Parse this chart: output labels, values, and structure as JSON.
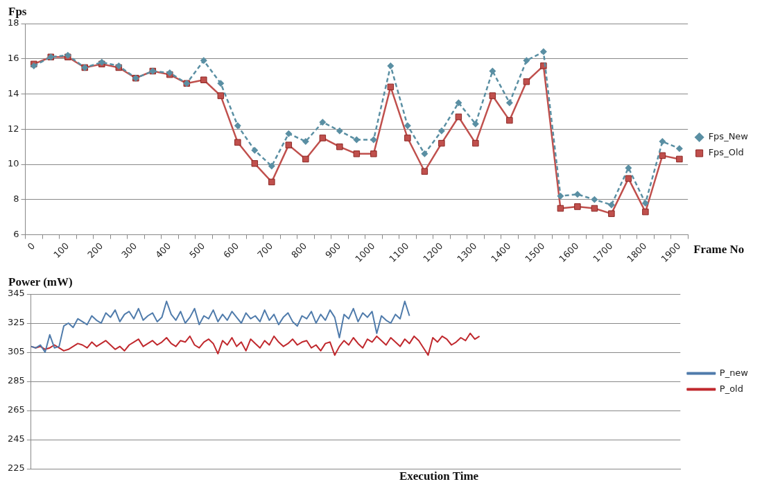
{
  "chart_data": [
    {
      "type": "line",
      "ylabel": "Fps",
      "xlabel": "Frame No",
      "categories": [
        "0",
        null,
        "100",
        null,
        "200",
        null,
        "300",
        null,
        "400",
        null,
        "500",
        null,
        "600",
        null,
        "700",
        null,
        "800",
        null,
        "900",
        null,
        "1000",
        null,
        "1100",
        null,
        "1200",
        null,
        "1300",
        null,
        "1400",
        null,
        "1500",
        null,
        "1600",
        null,
        "1700",
        null,
        "1800",
        null,
        "1900"
      ],
      "series": [
        {
          "name": "Fps_Old",
          "color": "#c0504d",
          "marker": "square",
          "line_style": "solid",
          "values": [
            15.7,
            16.1,
            16.1,
            15.5,
            15.7,
            15.5,
            14.9,
            15.3,
            15.1,
            14.6,
            14.8,
            13.9,
            11.25,
            10.05,
            9.0,
            11.1,
            10.3,
            11.5,
            11.0,
            10.6,
            10.6,
            14.4,
            11.5,
            9.6,
            11.2,
            12.7,
            11.2,
            13.9,
            12.5,
            14.7,
            15.6,
            7.5,
            7.6,
            7.5,
            7.2,
            9.2,
            7.3,
            10.5,
            10.3
          ]
        },
        {
          "name": "Fps_New",
          "color": "#5a8fa3",
          "marker": "diamond",
          "line_style": "dashed",
          "values": [
            15.6,
            16.1,
            16.2,
            15.5,
            15.8,
            15.6,
            14.9,
            15.3,
            15.2,
            14.6,
            15.9,
            14.6,
            12.2,
            10.8,
            9.9,
            11.75,
            11.3,
            12.4,
            11.9,
            11.4,
            11.4,
            15.6,
            12.2,
            10.6,
            11.9,
            13.5,
            12.3,
            15.3,
            13.5,
            15.9,
            16.4,
            8.2,
            8.3,
            8.0,
            7.7,
            9.8,
            7.8,
            11.3,
            10.9
          ]
        }
      ],
      "ylim": [
        6,
        18
      ],
      "yticks": [
        6,
        8,
        10,
        12,
        14,
        16,
        18
      ],
      "grid": "y",
      "legend": "right"
    },
    {
      "type": "line",
      "ylabel": "Power (mW)",
      "xlabel": "Execution Time",
      "marker": "none",
      "tick_labels": "y",
      "categories": [
        null,
        null,
        null,
        null,
        null,
        null,
        null,
        null,
        null,
        null,
        null,
        null,
        null,
        null,
        null,
        null,
        null,
        null,
        null,
        null,
        null,
        null,
        null,
        null,
        null,
        null,
        null,
        null,
        null,
        null,
        null,
        null,
        null,
        null,
        null,
        null,
        null,
        null,
        null,
        null,
        null,
        null,
        null,
        null,
        null,
        null,
        null,
        null,
        null,
        null,
        null,
        null,
        null,
        null,
        null,
        null,
        null,
        null,
        null,
        null,
        null,
        null,
        null,
        null,
        null,
        null,
        null,
        null,
        null,
        null,
        null,
        null,
        null,
        null,
        null,
        null,
        null,
        null,
        null,
        null,
        null,
        null,
        null,
        null,
        null,
        null,
        null,
        null,
        null,
        null,
        null,
        null,
        null,
        null,
        null,
        null,
        null,
        null,
        null,
        null,
        null,
        null,
        null,
        null,
        null,
        null,
        null,
        null,
        null,
        null,
        null,
        null,
        null,
        null,
        null,
        null,
        null,
        null,
        null,
        null,
        null,
        null,
        null,
        null,
        null,
        null,
        null,
        null,
        null,
        null,
        null,
        null,
        null,
        null,
        null,
        null,
        null,
        null,
        null,
        null
      ],
      "series": [
        {
          "name": "P_old",
          "color": "#c0282d",
          "values": [
            309,
            308,
            309,
            307,
            308,
            310,
            308,
            306,
            307,
            309,
            311,
            310,
            308,
            312,
            309,
            311,
            313,
            310,
            307,
            309,
            306,
            310,
            312,
            314,
            309,
            311,
            313,
            310,
            312,
            315,
            311,
            309,
            313,
            312,
            316,
            310,
            308,
            312,
            314,
            311,
            304,
            313,
            310,
            315,
            309,
            312,
            306,
            314,
            311,
            308,
            313,
            310,
            316,
            312,
            309,
            311,
            314,
            310,
            312,
            313,
            308,
            310,
            306,
            311,
            312,
            303,
            309,
            313,
            310,
            315,
            311,
            308,
            314,
            312,
            316,
            313,
            310,
            315,
            312,
            309,
            314,
            311,
            316,
            313,
            308,
            303,
            315,
            312,
            316,
            314,
            310,
            312,
            315,
            313,
            318,
            314,
            316,
            null,
            null,
            null,
            null,
            null,
            null,
            null,
            null,
            null,
            null,
            null,
            null,
            null,
            null,
            null,
            null,
            null,
            null,
            null,
            null,
            null,
            null,
            null,
            null,
            null,
            null,
            null,
            null,
            null,
            null,
            null,
            null,
            null,
            null,
            null,
            null,
            null,
            null,
            null,
            null,
            null,
            null,
            null
          ]
        },
        {
          "name": "P_new",
          "color": "#4f7bab",
          "values": [
            309,
            308,
            310,
            305,
            317,
            308,
            309,
            323,
            325,
            322,
            328,
            326,
            324,
            330,
            327,
            325,
            332,
            329,
            334,
            326,
            331,
            333,
            328,
            335,
            327,
            330,
            332,
            326,
            329,
            340,
            331,
            327,
            333,
            325,
            329,
            335,
            324,
            330,
            328,
            334,
            326,
            331,
            327,
            333,
            329,
            325,
            332,
            328,
            330,
            326,
            334,
            327,
            331,
            324,
            329,
            332,
            326,
            323,
            330,
            328,
            333,
            325,
            331,
            327,
            334,
            329,
            315,
            331,
            328,
            335,
            326,
            332,
            329,
            333,
            318,
            330,
            327,
            325,
            331,
            328,
            340,
            330,
            null,
            null,
            null,
            null,
            null,
            null,
            null,
            null,
            null,
            null,
            null,
            null,
            null,
            null,
            null,
            null,
            null,
            null,
            null,
            null,
            null,
            null,
            null,
            null,
            null,
            null,
            null,
            null,
            null,
            null,
            null,
            null,
            null,
            null,
            null,
            null,
            null,
            null,
            null,
            null,
            null,
            null,
            null,
            null,
            null,
            null,
            null,
            null,
            null,
            null,
            null,
            null,
            null,
            null,
            null,
            null,
            null,
            null
          ]
        }
      ],
      "ylim": [
        225,
        345
      ],
      "yticks": [
        225,
        245,
        265,
        285,
        305,
        325,
        345
      ],
      "grid": "y",
      "legend": "right"
    }
  ]
}
